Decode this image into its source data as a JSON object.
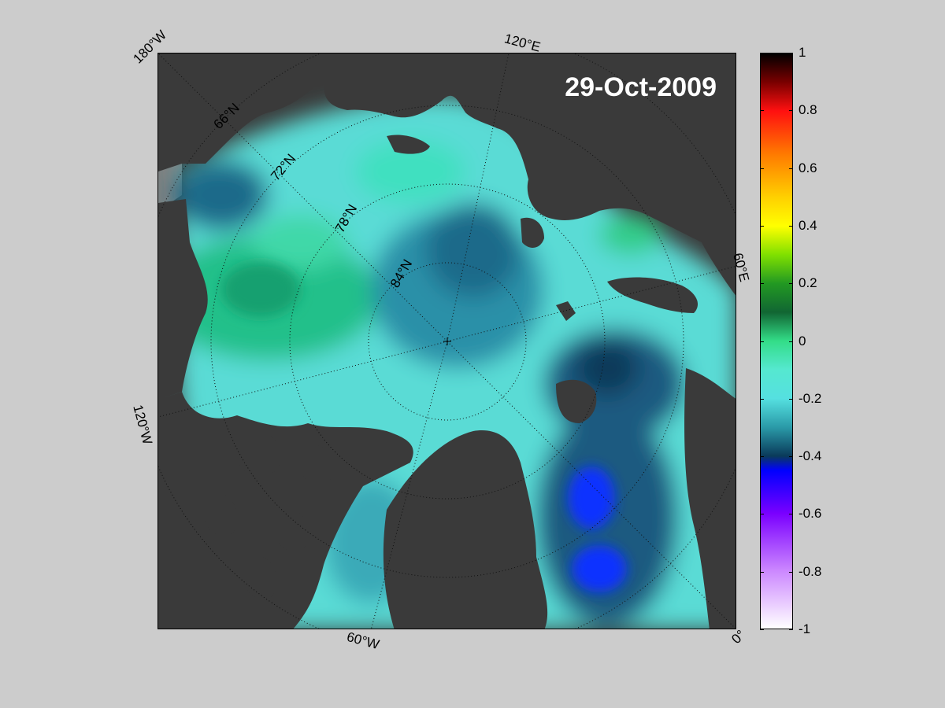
{
  "map": {
    "date": "29-Oct-2009",
    "center_marker": "north-pole-marker",
    "longitude_labels": [
      {
        "id": "lon-180w",
        "text": "180°W"
      },
      {
        "id": "lon-120e",
        "text": "120°E"
      },
      {
        "id": "lon-60e",
        "text": "60°E"
      },
      {
        "id": "lon-120w",
        "text": "120°W"
      },
      {
        "id": "lon-60w",
        "text": "60°W"
      },
      {
        "id": "lon-0",
        "text": "0°"
      }
    ],
    "latitude_labels": [
      {
        "id": "lat-66n",
        "text": "66°N"
      },
      {
        "id": "lat-72n",
        "text": "72°N"
      },
      {
        "id": "lat-78n",
        "text": "78°N"
      },
      {
        "id": "lat-84n",
        "text": "84°N"
      }
    ],
    "colors": {
      "land": "#3a3a3a",
      "land_outside": "#808080",
      "background": "#cccccc"
    }
  },
  "colorbar": {
    "ticks": [
      "1",
      "0.8",
      "0.6",
      "0.4",
      "0.2",
      "0",
      "-0.2",
      "-0.4",
      "-0.6",
      "-0.8",
      "-1"
    ],
    "range": [
      -1,
      1
    ],
    "gradient": [
      {
        "v": 1.0,
        "c": "#000000"
      },
      {
        "v": 0.9,
        "c": "#7a0000"
      },
      {
        "v": 0.8,
        "c": "#ff1010"
      },
      {
        "v": 0.65,
        "c": "#ff7a00"
      },
      {
        "v": 0.5,
        "c": "#ffd000"
      },
      {
        "v": 0.4,
        "c": "#ffff00"
      },
      {
        "v": 0.3,
        "c": "#80e000"
      },
      {
        "v": 0.2,
        "c": "#229922"
      },
      {
        "v": 0.1,
        "c": "#116633"
      },
      {
        "v": 0.0,
        "c": "#33dd88"
      },
      {
        "v": -0.1,
        "c": "#55e8d0"
      },
      {
        "v": -0.2,
        "c": "#55e0e0"
      },
      {
        "v": -0.3,
        "c": "#2a9aa8"
      },
      {
        "v": -0.4,
        "c": "#0a3a5a"
      },
      {
        "v": -0.45,
        "c": "#0000ff"
      },
      {
        "v": -0.6,
        "c": "#7a00ff"
      },
      {
        "v": -0.8,
        "c": "#cc88ff"
      },
      {
        "v": -1.0,
        "c": "#ffffff"
      }
    ]
  }
}
